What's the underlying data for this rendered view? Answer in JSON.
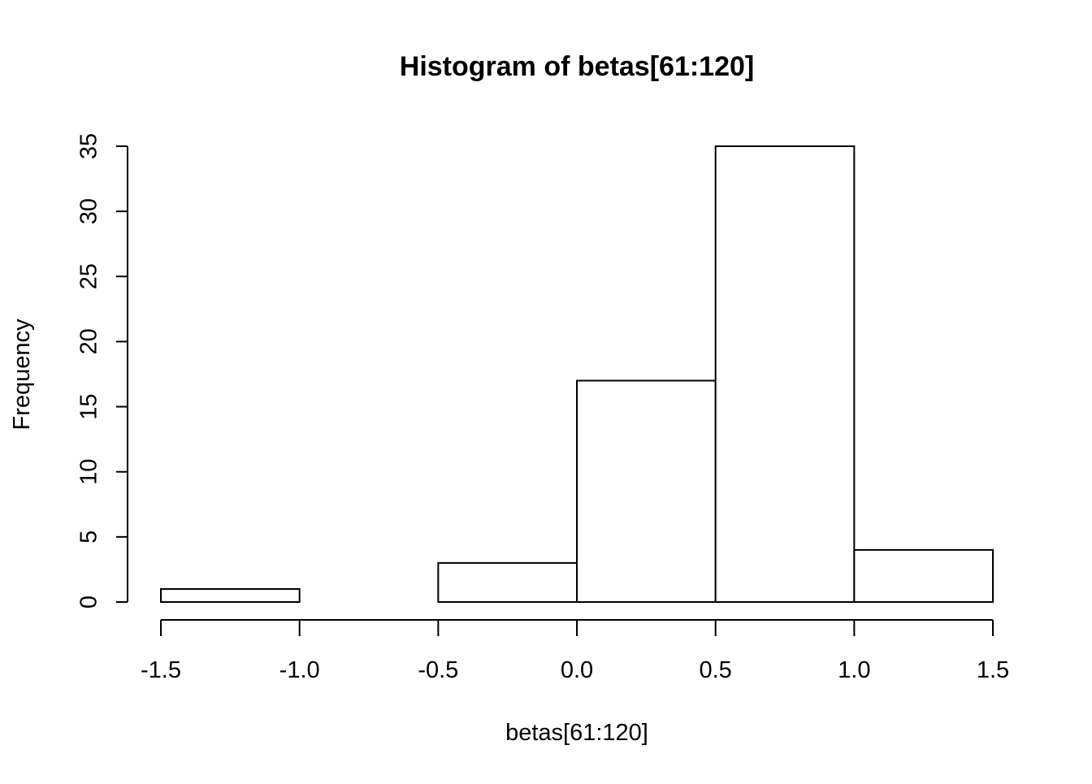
{
  "chart_data": {
    "type": "bar",
    "title": "Histogram of betas[61:120]",
    "xlabel": "betas[61:120]",
    "ylabel": "Frequency",
    "bins": [
      {
        "from": -1.5,
        "to": -1.0,
        "count": 1
      },
      {
        "from": -1.0,
        "to": -0.5,
        "count": 0
      },
      {
        "from": -0.5,
        "to": 0.0,
        "count": 3
      },
      {
        "from": 0.0,
        "to": 0.5,
        "count": 17
      },
      {
        "from": 0.5,
        "to": 1.0,
        "count": 35
      },
      {
        "from": 1.0,
        "to": 1.5,
        "count": 4
      }
    ],
    "xlim": [
      -1.5,
      1.5
    ],
    "ylim": [
      0,
      35
    ],
    "x_ticks": [
      -1.5,
      -1.0,
      -0.5,
      0.0,
      0.5,
      1.0,
      1.5
    ],
    "x_tick_labels": [
      "-1.5",
      "-1.0",
      "-0.5",
      "0.0",
      "0.5",
      "1.0",
      "1.5"
    ],
    "y_ticks": [
      0,
      5,
      10,
      15,
      20,
      25,
      30,
      35
    ],
    "y_tick_labels": [
      "0",
      "5",
      "10",
      "15",
      "20",
      "25",
      "30",
      "35"
    ],
    "grid": false,
    "bar_fill": "#ffffff",
    "bar_stroke": "#000000"
  }
}
